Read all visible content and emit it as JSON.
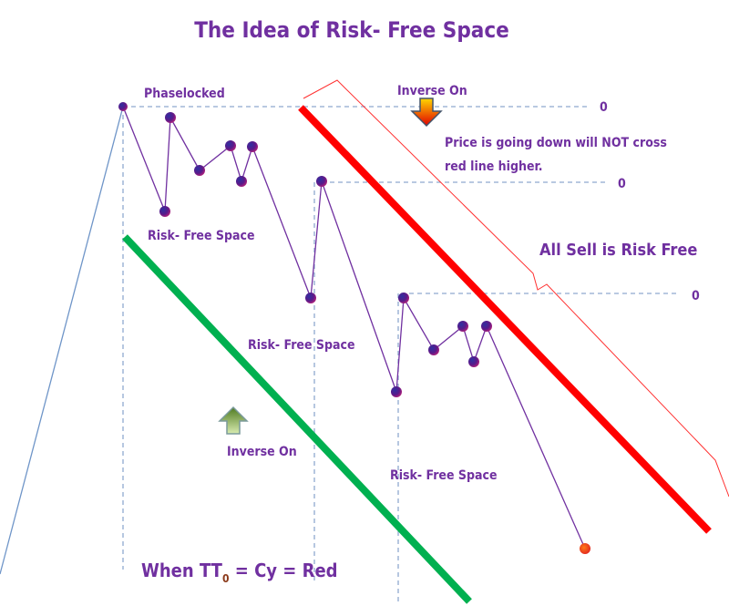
{
  "title": "The Idea of Risk- Free Space",
  "labels": {
    "phaselocked": "Phaselocked",
    "inverse_on_top": "Inverse On",
    "inverse_on_bottom": "Inverse On",
    "note_line1": "Price is going down will NOT cross",
    "note_line2": "red line higher.",
    "all_sell": "All Sell is Risk Free",
    "risk_free_1": "Risk- Free Space",
    "risk_free_2": "Risk- Free Space",
    "risk_free_3": "Risk- Free Space",
    "zero_1": "0",
    "zero_2": "0",
    "zero_3": "0",
    "formula_prefix": "When TT",
    "formula_sub": "0",
    "formula_suffix": " = Cy = Red"
  },
  "colors": {
    "text": "#7030a0",
    "red_line": "#ff0000",
    "green_line": "#00b050",
    "price_line": "#7030a0",
    "dashed": "#8fa9cf",
    "blue_line": "#6f95c8"
  }
}
